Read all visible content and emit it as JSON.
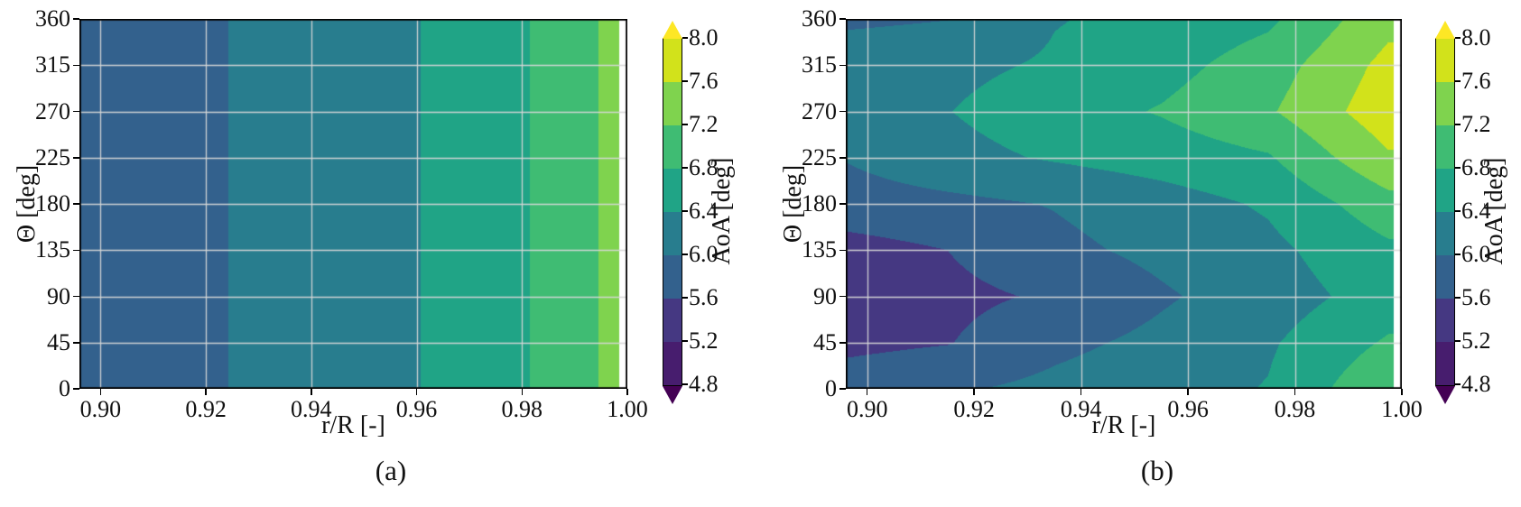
{
  "figure": {
    "background": "#ffffff",
    "captions": [
      "(a)",
      "(b)"
    ]
  },
  "colors": {
    "under": "#440154",
    "bands": [
      "#471d6e",
      "#453882",
      "#33618d",
      "#287d8e",
      "#20a486",
      "#3fbc73",
      "#7fd34e",
      "#d2e21b"
    ],
    "over": "#fde725",
    "gridline": "#d7d7d7",
    "axis": "#000000",
    "text": "#111111",
    "no_data": "#ffffff"
  },
  "colorbar": {
    "label": "AoA [deg]",
    "tick_labels": [
      "4.8",
      "5.2",
      "5.6",
      "6.0",
      "6.4",
      "6.8",
      "7.2",
      "7.6",
      "8.0"
    ],
    "min": 4.8,
    "max": 8.0,
    "extend": "both"
  },
  "chart_data": [
    {
      "type": "heatmap",
      "subtype": "filled-contour",
      "caption": "(a)",
      "xlabel": "r/R [-]",
      "ylabel": "Θ [deg]",
      "colorbar_label": "AoA [deg]",
      "xlim": [
        0.896,
        1.0
      ],
      "ylim": [
        0,
        360
      ],
      "xtick_values": [
        0.9,
        0.92,
        0.94,
        0.96,
        0.98,
        1.0
      ],
      "xtick_labels": [
        "0.90",
        "0.92",
        "0.94",
        "0.96",
        "0.98",
        "1.00"
      ],
      "ytick_values": [
        0,
        45,
        90,
        135,
        180,
        225,
        270,
        315,
        360
      ],
      "ytick_labels": [
        "0",
        "45",
        "90",
        "135",
        "180",
        "225",
        "270",
        "315",
        "360"
      ],
      "levels": [
        4.8,
        5.2,
        5.6,
        6.0,
        6.4,
        6.8,
        7.2,
        7.6,
        8.0
      ],
      "r": [
        0.896,
        0.915,
        0.935,
        0.955,
        0.975,
        0.9975
      ],
      "theta": [
        0,
        45,
        90,
        135,
        180,
        225,
        270,
        315,
        360
      ],
      "data_edge_r": 0.9985,
      "aoa": [
        [
          5.86,
          5.93,
          6.08,
          6.32,
          6.6,
          7.29
        ],
        [
          5.86,
          5.93,
          6.08,
          6.32,
          6.6,
          7.29
        ],
        [
          5.86,
          5.93,
          6.08,
          6.32,
          6.6,
          7.29
        ],
        [
          5.86,
          5.93,
          6.08,
          6.32,
          6.6,
          7.29
        ],
        [
          5.86,
          5.93,
          6.08,
          6.32,
          6.6,
          7.29
        ],
        [
          5.86,
          5.93,
          6.08,
          6.32,
          6.6,
          7.29
        ],
        [
          5.86,
          5.93,
          6.08,
          6.32,
          6.6,
          7.29
        ],
        [
          5.86,
          5.93,
          6.08,
          6.32,
          6.6,
          7.29
        ],
        [
          5.86,
          5.93,
          6.08,
          6.32,
          6.6,
          7.29
        ]
      ]
    },
    {
      "type": "heatmap",
      "subtype": "filled-contour",
      "caption": "(b)",
      "xlabel": "r/R [-]",
      "ylabel": "Θ [deg]",
      "colorbar_label": "AoA [deg]",
      "xlim": [
        0.896,
        1.0
      ],
      "ylim": [
        0,
        360
      ],
      "xtick_values": [
        0.9,
        0.92,
        0.94,
        0.96,
        0.98,
        1.0
      ],
      "xtick_labels": [
        "0.90",
        "0.92",
        "0.94",
        "0.96",
        "0.98",
        "1.00"
      ],
      "ytick_values": [
        0,
        45,
        90,
        135,
        180,
        225,
        270,
        315,
        360
      ],
      "ytick_labels": [
        "0",
        "45",
        "90",
        "135",
        "180",
        "225",
        "270",
        "315",
        "360"
      ],
      "levels": [
        4.8,
        5.2,
        5.6,
        6.0,
        6.4,
        6.8,
        7.2,
        7.6,
        8.0
      ],
      "r": [
        0.896,
        0.915,
        0.935,
        0.955,
        0.975,
        0.9975
      ],
      "theta": [
        0,
        45,
        90,
        135,
        180,
        225,
        270,
        315,
        360
      ],
      "data_edge_r": 0.9985,
      "aoa": [
        [
          5.8,
          5.95,
          6.1,
          6.25,
          6.42,
          7.15
        ],
        [
          5.5,
          5.58,
          5.9,
          6.1,
          6.35,
          6.85
        ],
        [
          5.4,
          5.5,
          5.65,
          5.95,
          6.2,
          6.58
        ],
        [
          5.45,
          5.6,
          5.9,
          6.1,
          6.3,
          6.72
        ],
        [
          5.82,
          5.9,
          6.02,
          6.22,
          6.45,
          7.05
        ],
        [
          6.02,
          6.28,
          6.44,
          6.58,
          6.76,
          7.55
        ],
        [
          6.35,
          6.39,
          6.62,
          6.83,
          7.15,
          7.85
        ],
        [
          6.25,
          6.3,
          6.45,
          6.65,
          7.0,
          7.72
        ],
        [
          5.92,
          5.99,
          6.38,
          6.5,
          6.72,
          7.48
        ]
      ]
    }
  ]
}
